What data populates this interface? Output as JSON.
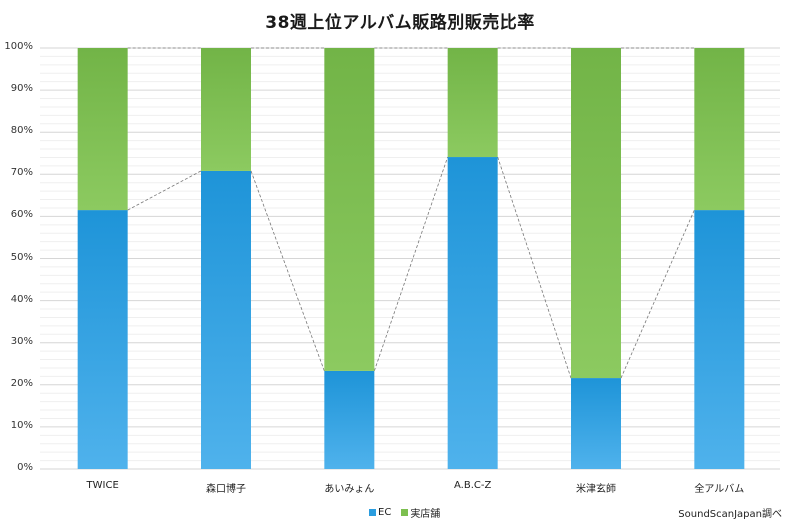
{
  "chart_data": {
    "type": "bar",
    "stacked": true,
    "title": "38週上位アルバム販路別販売比率",
    "xlabel": "",
    "ylabel": "",
    "ylim": [
      0,
      100
    ],
    "yticks": [
      "0%",
      "10%",
      "20%",
      "30%",
      "40%",
      "50%",
      "60%",
      "70%",
      "80%",
      "90%",
      "100%"
    ],
    "categories": [
      "TWICE",
      "森口博子",
      "あいみょん",
      "A.B.C-Z",
      "米津玄師",
      "全アルバム"
    ],
    "series": [
      {
        "name": "EC",
        "color": "#2b9ddf",
        "values": [
          61.5,
          70.8,
          23.3,
          74.1,
          21.6,
          61.5
        ]
      },
      {
        "name": "実店舗",
        "color": "#7cbf4f",
        "values": [
          38.5,
          29.2,
          76.7,
          25.9,
          78.4,
          38.5
        ]
      }
    ],
    "grid": true,
    "minor_grid_step": 2,
    "legend_position": "bottom",
    "series_lines": "dashed connectors between stack boundaries",
    "annotation": "SoundScanJapan調べ"
  },
  "legend": {
    "items": [
      {
        "label": "EC",
        "color": "#2b9ddf"
      },
      {
        "label": "実店舗",
        "color": "#7cbf4f"
      }
    ]
  },
  "source": "SoundScanJapan調べ"
}
